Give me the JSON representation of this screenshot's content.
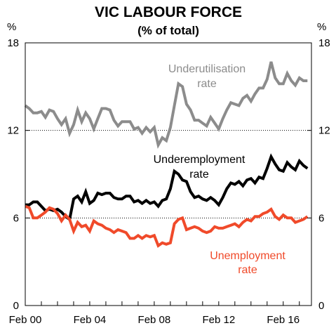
{
  "chart_data": {
    "type": "line",
    "title": "VIC LABOUR FORCE",
    "subtitle": "(% of total)",
    "ylabel_left": "%",
    "ylabel_right": "%",
    "xlim": [
      2000.0,
      2017.75
    ],
    "ylim": [
      0,
      18
    ],
    "yticks": [
      0,
      6,
      12,
      18
    ],
    "ytick_labels": [
      "0",
      "6",
      "12",
      "18"
    ],
    "xticks": [
      2000,
      2004,
      2008,
      2012,
      2016
    ],
    "xtick_labels": [
      "Feb 00",
      "Feb 04",
      "Feb 08",
      "Feb 12",
      "Feb 16"
    ],
    "dotted_gridlines": [
      6,
      12
    ],
    "series": [
      {
        "name": "Underutilisation rate",
        "label_lines": [
          "Underutilisation",
          "rate"
        ],
        "color": "#8c8c8c",
        "points": [
          [
            2000.0,
            13.7
          ],
          [
            2000.25,
            13.5
          ],
          [
            2000.5,
            13.2
          ],
          [
            2000.75,
            13.2
          ],
          [
            2001.0,
            13.3
          ],
          [
            2001.25,
            12.9
          ],
          [
            2001.5,
            13.4
          ],
          [
            2001.75,
            13.3
          ],
          [
            2002.0,
            12.8
          ],
          [
            2002.25,
            12.4
          ],
          [
            2002.5,
            12.8
          ],
          [
            2002.75,
            11.8
          ],
          [
            2003.0,
            12.4
          ],
          [
            2003.25,
            13.4
          ],
          [
            2003.5,
            12.6
          ],
          [
            2003.75,
            13.2
          ],
          [
            2004.0,
            12.8
          ],
          [
            2004.25,
            12.1
          ],
          [
            2004.5,
            12.8
          ],
          [
            2004.75,
            13.5
          ],
          [
            2005.0,
            13.5
          ],
          [
            2005.25,
            13.4
          ],
          [
            2005.5,
            12.7
          ],
          [
            2005.75,
            12.3
          ],
          [
            2006.0,
            12.6
          ],
          [
            2006.25,
            12.6
          ],
          [
            2006.5,
            12.6
          ],
          [
            2006.75,
            12.1
          ],
          [
            2007.0,
            12.2
          ],
          [
            2007.25,
            11.8
          ],
          [
            2007.5,
            12.2
          ],
          [
            2007.75,
            11.9
          ],
          [
            2008.0,
            12.2
          ],
          [
            2008.25,
            11.0
          ],
          [
            2008.5,
            11.5
          ],
          [
            2008.75,
            11.3
          ],
          [
            2009.0,
            12.2
          ],
          [
            2009.25,
            13.7
          ],
          [
            2009.5,
            15.2
          ],
          [
            2009.75,
            15.0
          ],
          [
            2010.0,
            13.8
          ],
          [
            2010.25,
            13.4
          ],
          [
            2010.5,
            12.7
          ],
          [
            2010.75,
            12.7
          ],
          [
            2011.0,
            12.5
          ],
          [
            2011.25,
            12.3
          ],
          [
            2011.5,
            12.9
          ],
          [
            2011.75,
            12.5
          ],
          [
            2012.0,
            12.1
          ],
          [
            2012.25,
            12.8
          ],
          [
            2012.5,
            13.4
          ],
          [
            2012.75,
            13.9
          ],
          [
            2013.0,
            13.8
          ],
          [
            2013.25,
            13.7
          ],
          [
            2013.5,
            14.2
          ],
          [
            2013.75,
            14.4
          ],
          [
            2014.0,
            14.0
          ],
          [
            2014.25,
            14.5
          ],
          [
            2014.5,
            14.9
          ],
          [
            2014.75,
            14.9
          ],
          [
            2015.0,
            15.5
          ],
          [
            2015.25,
            16.7
          ],
          [
            2015.5,
            15.6
          ],
          [
            2015.75,
            15.2
          ],
          [
            2016.0,
            15.2
          ],
          [
            2016.25,
            15.9
          ],
          [
            2016.5,
            15.4
          ],
          [
            2016.75,
            15.1
          ],
          [
            2017.0,
            15.6
          ],
          [
            2017.25,
            15.4
          ],
          [
            2017.5,
            15.4
          ]
        ]
      },
      {
        "name": "Underemployment rate",
        "label_lines": [
          "Underemployment",
          "rate"
        ],
        "color": "#000000",
        "points": [
          [
            2000.0,
            6.9
          ],
          [
            2000.25,
            6.9
          ],
          [
            2000.5,
            7.1
          ],
          [
            2000.75,
            7.1
          ],
          [
            2001.0,
            6.8
          ],
          [
            2001.25,
            6.5
          ],
          [
            2001.5,
            6.6
          ],
          [
            2001.75,
            6.5
          ],
          [
            2002.0,
            6.6
          ],
          [
            2002.25,
            6.4
          ],
          [
            2002.5,
            6.1
          ],
          [
            2002.75,
            5.9
          ],
          [
            2003.0,
            7.3
          ],
          [
            2003.25,
            7.5
          ],
          [
            2003.5,
            7.1
          ],
          [
            2003.75,
            7.8
          ],
          [
            2004.0,
            7.0
          ],
          [
            2004.25,
            7.2
          ],
          [
            2004.5,
            7.7
          ],
          [
            2004.75,
            7.6
          ],
          [
            2005.0,
            7.7
          ],
          [
            2005.25,
            7.7
          ],
          [
            2005.5,
            7.4
          ],
          [
            2005.75,
            7.3
          ],
          [
            2006.0,
            7.3
          ],
          [
            2006.25,
            7.5
          ],
          [
            2006.5,
            7.5
          ],
          [
            2006.75,
            7.1
          ],
          [
            2007.0,
            7.2
          ],
          [
            2007.25,
            7.0
          ],
          [
            2007.5,
            7.2
          ],
          [
            2007.75,
            7.0
          ],
          [
            2008.0,
            7.1
          ],
          [
            2008.25,
            6.8
          ],
          [
            2008.5,
            7.2
          ],
          [
            2008.75,
            7.3
          ],
          [
            2009.0,
            8.0
          ],
          [
            2009.25,
            9.2
          ],
          [
            2009.5,
            9.0
          ],
          [
            2009.75,
            8.6
          ],
          [
            2010.0,
            8.5
          ],
          [
            2010.25,
            7.8
          ],
          [
            2010.5,
            7.4
          ],
          [
            2010.75,
            7.5
          ],
          [
            2011.0,
            7.3
          ],
          [
            2011.25,
            7.2
          ],
          [
            2011.5,
            7.4
          ],
          [
            2011.75,
            7.2
          ],
          [
            2012.0,
            6.9
          ],
          [
            2012.25,
            7.4
          ],
          [
            2012.5,
            8.0
          ],
          [
            2012.75,
            8.4
          ],
          [
            2013.0,
            8.3
          ],
          [
            2013.25,
            8.5
          ],
          [
            2013.5,
            8.2
          ],
          [
            2013.75,
            8.6
          ],
          [
            2014.0,
            8.7
          ],
          [
            2014.25,
            8.4
          ],
          [
            2014.5,
            8.8
          ],
          [
            2014.75,
            8.7
          ],
          [
            2015.0,
            9.4
          ],
          [
            2015.25,
            10.2
          ],
          [
            2015.5,
            9.7
          ],
          [
            2015.75,
            9.3
          ],
          [
            2016.0,
            9.2
          ],
          [
            2016.25,
            9.8
          ],
          [
            2016.5,
            9.5
          ],
          [
            2016.75,
            9.3
          ],
          [
            2017.0,
            9.9
          ],
          [
            2017.25,
            9.6
          ],
          [
            2017.5,
            9.4
          ]
        ]
      },
      {
        "name": "Unemployment rate",
        "label_lines": [
          "Unemployment",
          "rate"
        ],
        "color": "#f04a2a",
        "points": [
          [
            2000.0,
            6.8
          ],
          [
            2000.25,
            6.7
          ],
          [
            2000.5,
            6.0
          ],
          [
            2000.75,
            6.0
          ],
          [
            2001.0,
            6.2
          ],
          [
            2001.25,
            6.4
          ],
          [
            2001.5,
            6.7
          ],
          [
            2001.75,
            6.6
          ],
          [
            2002.0,
            6.3
          ],
          [
            2002.25,
            5.8
          ],
          [
            2002.5,
            6.2
          ],
          [
            2002.75,
            5.9
          ],
          [
            2003.0,
            5.1
          ],
          [
            2003.25,
            5.7
          ],
          [
            2003.5,
            5.4
          ],
          [
            2003.75,
            5.5
          ],
          [
            2004.0,
            5.1
          ],
          [
            2004.25,
            5.8
          ],
          [
            2004.5,
            5.6
          ],
          [
            2004.75,
            5.5
          ],
          [
            2005.0,
            5.3
          ],
          [
            2005.25,
            5.2
          ],
          [
            2005.5,
            5.0
          ],
          [
            2005.75,
            5.2
          ],
          [
            2006.0,
            5.1
          ],
          [
            2006.25,
            5.0
          ],
          [
            2006.5,
            4.6
          ],
          [
            2006.75,
            4.6
          ],
          [
            2007.0,
            4.8
          ],
          [
            2007.25,
            4.6
          ],
          [
            2007.5,
            4.8
          ],
          [
            2007.75,
            4.7
          ],
          [
            2008.0,
            4.8
          ],
          [
            2008.25,
            4.1
          ],
          [
            2008.5,
            4.3
          ],
          [
            2008.75,
            4.2
          ],
          [
            2009.0,
            4.3
          ],
          [
            2009.25,
            5.6
          ],
          [
            2009.5,
            5.9
          ],
          [
            2009.75,
            6.0
          ],
          [
            2010.0,
            5.2
          ],
          [
            2010.25,
            5.3
          ],
          [
            2010.5,
            5.4
          ],
          [
            2010.75,
            5.3
          ],
          [
            2011.0,
            5.1
          ],
          [
            2011.25,
            5.0
          ],
          [
            2011.5,
            5.1
          ],
          [
            2011.75,
            5.4
          ],
          [
            2012.0,
            5.3
          ],
          [
            2012.25,
            5.3
          ],
          [
            2012.5,
            5.4
          ],
          [
            2012.75,
            5.5
          ],
          [
            2013.0,
            5.6
          ],
          [
            2013.25,
            5.4
          ],
          [
            2013.5,
            5.7
          ],
          [
            2013.75,
            5.9
          ],
          [
            2014.0,
            5.8
          ],
          [
            2014.25,
            6.1
          ],
          [
            2014.5,
            6.1
          ],
          [
            2014.75,
            6.3
          ],
          [
            2015.0,
            6.4
          ],
          [
            2015.25,
            6.6
          ],
          [
            2015.5,
            6.1
          ],
          [
            2015.75,
            5.9
          ],
          [
            2016.0,
            6.2
          ],
          [
            2016.25,
            6.0
          ],
          [
            2016.5,
            6.0
          ],
          [
            2016.75,
            5.7
          ],
          [
            2017.0,
            5.8
          ],
          [
            2017.25,
            5.9
          ],
          [
            2017.5,
            6.1
          ]
        ]
      }
    ]
  }
}
